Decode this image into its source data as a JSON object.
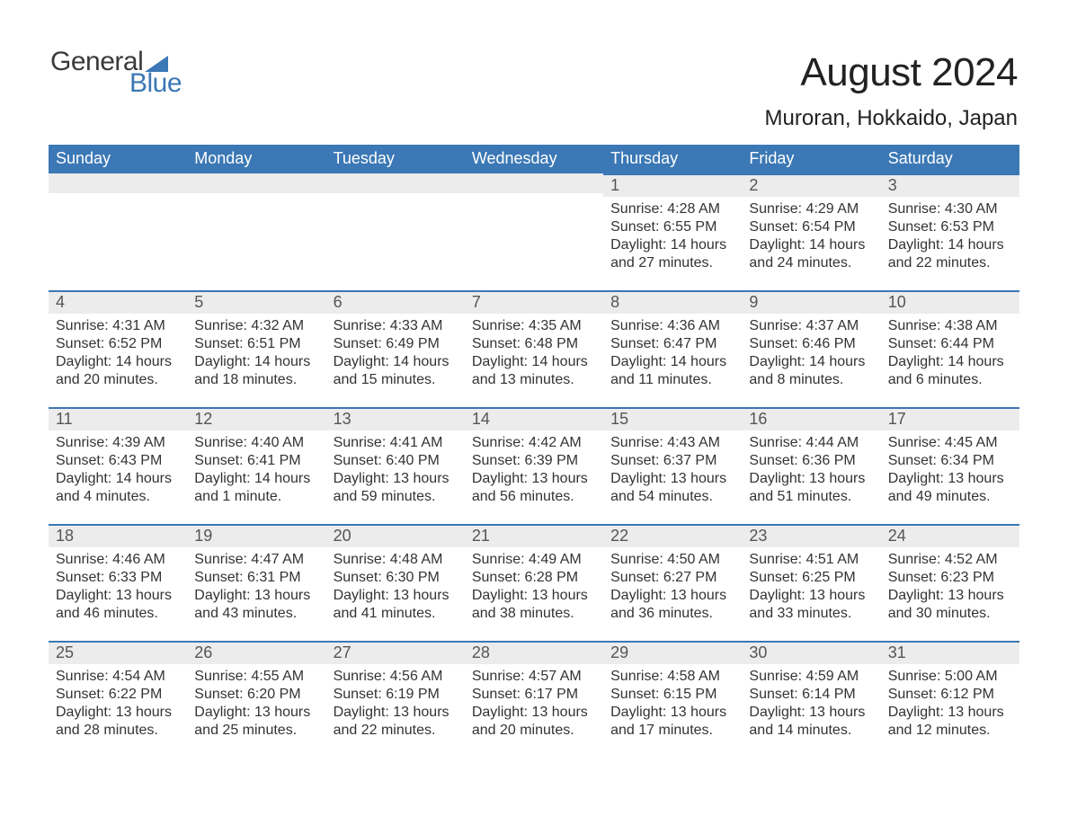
{
  "brand": {
    "part1": "General",
    "part2": "Blue",
    "accent_color": "#3b78b5",
    "text_color": "#3a3a3a"
  },
  "header": {
    "title": "August 2024",
    "location": "Muroran, Hokkaido, Japan"
  },
  "colors": {
    "header_bg": "#3b78b5",
    "header_fg": "#ffffff",
    "daynum_bg": "#ececec",
    "daynum_border": "#3b78b5",
    "body_text": "#333333",
    "page_bg": "#ffffff"
  },
  "weekdays": [
    "Sunday",
    "Monday",
    "Tuesday",
    "Wednesday",
    "Thursday",
    "Friday",
    "Saturday"
  ],
  "labels": {
    "sunrise": "Sunrise: ",
    "sunset": "Sunset: ",
    "daylight": "Daylight: "
  },
  "weeks": [
    [
      null,
      null,
      null,
      null,
      {
        "day": "1",
        "sunrise": "4:28 AM",
        "sunset": "6:55 PM",
        "daylight": "14 hours and 27 minutes."
      },
      {
        "day": "2",
        "sunrise": "4:29 AM",
        "sunset": "6:54 PM",
        "daylight": "14 hours and 24 minutes."
      },
      {
        "day": "3",
        "sunrise": "4:30 AM",
        "sunset": "6:53 PM",
        "daylight": "14 hours and 22 minutes."
      }
    ],
    [
      {
        "day": "4",
        "sunrise": "4:31 AM",
        "sunset": "6:52 PM",
        "daylight": "14 hours and 20 minutes."
      },
      {
        "day": "5",
        "sunrise": "4:32 AM",
        "sunset": "6:51 PM",
        "daylight": "14 hours and 18 minutes."
      },
      {
        "day": "6",
        "sunrise": "4:33 AM",
        "sunset": "6:49 PM",
        "daylight": "14 hours and 15 minutes."
      },
      {
        "day": "7",
        "sunrise": "4:35 AM",
        "sunset": "6:48 PM",
        "daylight": "14 hours and 13 minutes."
      },
      {
        "day": "8",
        "sunrise": "4:36 AM",
        "sunset": "6:47 PM",
        "daylight": "14 hours and 11 minutes."
      },
      {
        "day": "9",
        "sunrise": "4:37 AM",
        "sunset": "6:46 PM",
        "daylight": "14 hours and 8 minutes."
      },
      {
        "day": "10",
        "sunrise": "4:38 AM",
        "sunset": "6:44 PM",
        "daylight": "14 hours and 6 minutes."
      }
    ],
    [
      {
        "day": "11",
        "sunrise": "4:39 AM",
        "sunset": "6:43 PM",
        "daylight": "14 hours and 4 minutes."
      },
      {
        "day": "12",
        "sunrise": "4:40 AM",
        "sunset": "6:41 PM",
        "daylight": "14 hours and 1 minute."
      },
      {
        "day": "13",
        "sunrise": "4:41 AM",
        "sunset": "6:40 PM",
        "daylight": "13 hours and 59 minutes."
      },
      {
        "day": "14",
        "sunrise": "4:42 AM",
        "sunset": "6:39 PM",
        "daylight": "13 hours and 56 minutes."
      },
      {
        "day": "15",
        "sunrise": "4:43 AM",
        "sunset": "6:37 PM",
        "daylight": "13 hours and 54 minutes."
      },
      {
        "day": "16",
        "sunrise": "4:44 AM",
        "sunset": "6:36 PM",
        "daylight": "13 hours and 51 minutes."
      },
      {
        "day": "17",
        "sunrise": "4:45 AM",
        "sunset": "6:34 PM",
        "daylight": "13 hours and 49 minutes."
      }
    ],
    [
      {
        "day": "18",
        "sunrise": "4:46 AM",
        "sunset": "6:33 PM",
        "daylight": "13 hours and 46 minutes."
      },
      {
        "day": "19",
        "sunrise": "4:47 AM",
        "sunset": "6:31 PM",
        "daylight": "13 hours and 43 minutes."
      },
      {
        "day": "20",
        "sunrise": "4:48 AM",
        "sunset": "6:30 PM",
        "daylight": "13 hours and 41 minutes."
      },
      {
        "day": "21",
        "sunrise": "4:49 AM",
        "sunset": "6:28 PM",
        "daylight": "13 hours and 38 minutes."
      },
      {
        "day": "22",
        "sunrise": "4:50 AM",
        "sunset": "6:27 PM",
        "daylight": "13 hours and 36 minutes."
      },
      {
        "day": "23",
        "sunrise": "4:51 AM",
        "sunset": "6:25 PM",
        "daylight": "13 hours and 33 minutes."
      },
      {
        "day": "24",
        "sunrise": "4:52 AM",
        "sunset": "6:23 PM",
        "daylight": "13 hours and 30 minutes."
      }
    ],
    [
      {
        "day": "25",
        "sunrise": "4:54 AM",
        "sunset": "6:22 PM",
        "daylight": "13 hours and 28 minutes."
      },
      {
        "day": "26",
        "sunrise": "4:55 AM",
        "sunset": "6:20 PM",
        "daylight": "13 hours and 25 minutes."
      },
      {
        "day": "27",
        "sunrise": "4:56 AM",
        "sunset": "6:19 PM",
        "daylight": "13 hours and 22 minutes."
      },
      {
        "day": "28",
        "sunrise": "4:57 AM",
        "sunset": "6:17 PM",
        "daylight": "13 hours and 20 minutes."
      },
      {
        "day": "29",
        "sunrise": "4:58 AM",
        "sunset": "6:15 PM",
        "daylight": "13 hours and 17 minutes."
      },
      {
        "day": "30",
        "sunrise": "4:59 AM",
        "sunset": "6:14 PM",
        "daylight": "13 hours and 14 minutes."
      },
      {
        "day": "31",
        "sunrise": "5:00 AM",
        "sunset": "6:12 PM",
        "daylight": "13 hours and 12 minutes."
      }
    ]
  ]
}
